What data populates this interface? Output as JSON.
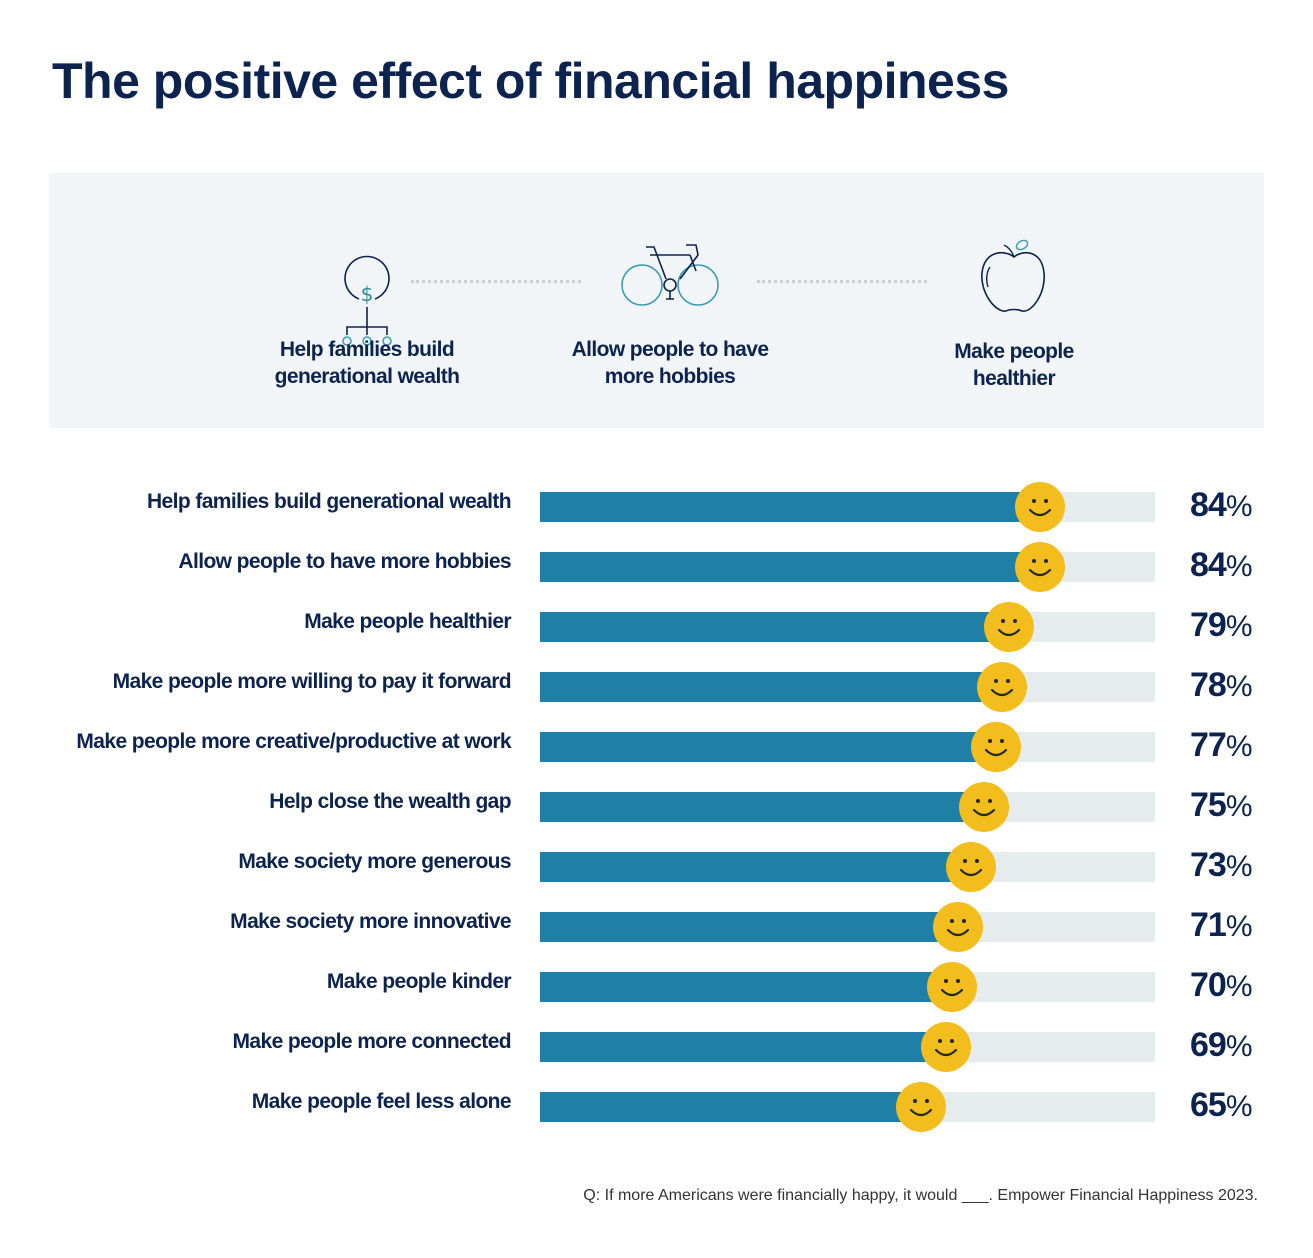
{
  "title": "The positive effect of financial happiness",
  "features": [
    {
      "icon": "family-wealth-icon",
      "label_lines": [
        "Help families build",
        "generational wealth"
      ]
    },
    {
      "icon": "bicycle-icon",
      "label_lines": [
        "Allow people to have",
        "more hobbies"
      ]
    },
    {
      "icon": "apple-icon",
      "label_lines": [
        "Make people",
        "healthier"
      ]
    }
  ],
  "colors": {
    "navy": "#0c2350",
    "bar": "#1f7fa6",
    "track": "#e6ebee",
    "smiley": "#f2bd1d",
    "panel": "#f2f5f7"
  },
  "chart_data": {
    "type": "bar",
    "orientation": "horizontal",
    "unit": "%",
    "xlim": [
      0,
      100
    ],
    "marker": "smiley-face",
    "categories": [
      "Help families build generational wealth",
      "Allow people to have more hobbies",
      "Make people healthier",
      "Make people more willing to pay it forward",
      "Make people more creative/productive at work",
      "Help close the wealth gap",
      "Make society more generous",
      "Make society more innovative",
      "Make people kinder",
      "Make people more connected",
      "Make people feel less alone"
    ],
    "values": [
      84,
      84,
      79,
      78,
      77,
      75,
      73,
      71,
      70,
      69,
      65
    ]
  },
  "source": "Q: If more Americans were financially happy, it would ___. Empower Financial Happiness 2023."
}
